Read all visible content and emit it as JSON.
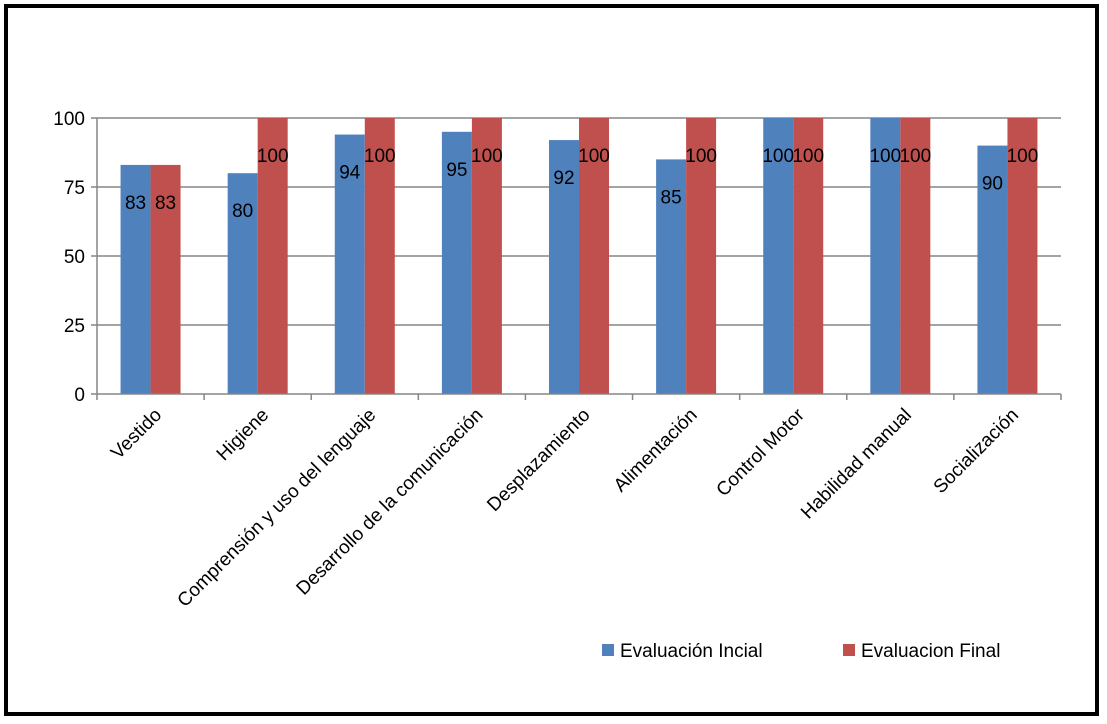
{
  "colors": {
    "series_1": "#4F81BD",
    "series_2": "#C0504D",
    "grid": "#868686",
    "axis": "#868686"
  },
  "chart_data": {
    "type": "bar",
    "title": "",
    "xlabel": "",
    "ylabel": "",
    "ylim": [
      0,
      100
    ],
    "yticks": [
      0,
      25,
      50,
      75,
      100
    ],
    "grid": true,
    "legend_position": "bottom-right",
    "categories": [
      "Vestido",
      "Higiene",
      "Comprensión y uso del lenguaje",
      "Desarrollo de la comunicación",
      "Desplazamiento",
      "Alimentación",
      "Control Motor",
      "Habilidad manual",
      "Socialización"
    ],
    "series": [
      {
        "name": "Evaluación Incial",
        "values": [
          83,
          80,
          94,
          95,
          92,
          85,
          100,
          100,
          90
        ]
      },
      {
        "name": "Evaluacion Final",
        "values": [
          83,
          100,
          100,
          100,
          100,
          100,
          100,
          100,
          100
        ]
      }
    ]
  }
}
